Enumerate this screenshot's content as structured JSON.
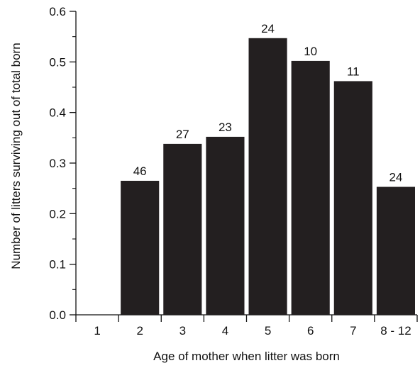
{
  "chart_data": {
    "type": "bar",
    "xlabel": "Age of mother when litter was born",
    "ylabel": "Number of litters surviving out of total born",
    "ylim": [
      0,
      0.6
    ],
    "yticks": [
      "0.0",
      "0.1",
      "0.2",
      "0.3",
      "0.4",
      "0.5",
      "0.6"
    ],
    "y_minor_step": 0.05,
    "grid": false,
    "categories": [
      "1",
      "2",
      "3",
      "4",
      "5",
      "6",
      "7",
      "8 - 12"
    ],
    "values": [
      0,
      0.265,
      0.338,
      0.352,
      0.547,
      0.502,
      0.462,
      0.253
    ],
    "bar_labels": [
      "",
      "46",
      "27",
      "23",
      "24",
      "10",
      "11",
      "24"
    ],
    "bar_color": "#231f20"
  }
}
